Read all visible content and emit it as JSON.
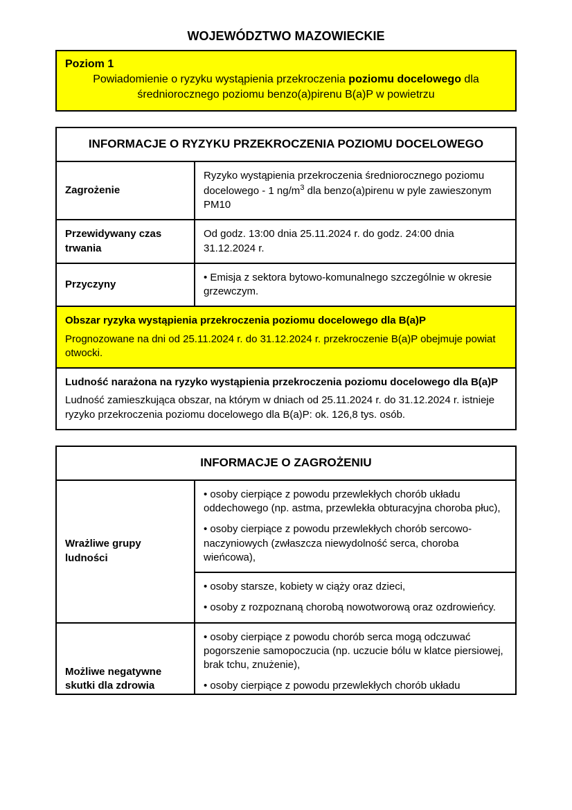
{
  "page_title": "WOJEWÓDZTWO MAZOWIECKIE",
  "banner": {
    "level": "Poziom 1",
    "line1_pre": "Powiadomienie o ryzyku wystąpienia przekroczenia ",
    "line1_bold": "poziomu docelowego",
    "line1_post": " dla średniorocznego poziomu benzo(a)pirenu B(a)P w powietrzu"
  },
  "risk_section": {
    "header": "INFORMACJE O RYZYKU PRZEKROCZENIA POZIOMU DOCELOWEGO",
    "rows": {
      "threat_label": "Zagrożenie",
      "threat_value_pre": "Ryzyko wystąpienia przekroczenia średniorocznego poziomu docelowego - 1 ng/m",
      "threat_value_post": " dla benzo(a)pirenu w pyle zawieszonym PM10",
      "duration_label": "Przewidywany czas trwania",
      "duration_value": "Od godz. 13:00 dnia 25.11.2024 r. do godz. 24:00 dnia 31.12.2024 r.",
      "causes_label": "Przyczyny",
      "causes_value": "• Emisja z sektora bytowo-komunalnego szczególnie w okresie grzewczym."
    },
    "area": {
      "title": "Obszar ryzyka wystąpienia przekroczenia poziomu docelowego dla B(a)P",
      "body": "Prognozowane na dni od 25.11.2024 r. do 31.12.2024 r. przekroczenie B(a)P obejmuje powiat otwocki."
    },
    "population": {
      "title": "Ludność narażona na ryzyko wystąpienia przekroczenia poziomu docelowego dla B(a)P",
      "body": "Ludność zamieszkująca obszar, na którym w dniach od 25.11.2024 r. do 31.12.2024 r. istnieje ryzyko przekroczenia poziomu docelowego dla B(a)P: ok. 126,8 tys. osób."
    }
  },
  "hazard_section": {
    "header": "INFORMACJE O ZAGROŻENIU",
    "sensitive_label": "Wrażliwe grupy ludności",
    "sensitive_cell1_p1": "• osoby cierpiące z powodu przewlekłych chorób układu oddechowego (np. astma, przewlekła obturacyjna choroba płuc),",
    "sensitive_cell1_p2": "• osoby cierpiące z powodu przewlekłych chorób sercowo-naczyniowych (zwłaszcza niewydolność serca, choroba wieńcowa),",
    "sensitive_cell2_p1": "• osoby starsze, kobiety w ciąży oraz dzieci,",
    "sensitive_cell2_p2": "• osoby z rozpoznaną chorobą nowotworową oraz ozdrowieńcy.",
    "effects_label": "Możliwe negatywne skutki dla zdrowia",
    "effects_p1": "• osoby cierpiące z powodu chorób serca mogą odczuwać pogorszenie samopoczucia (np. uczucie bólu w klatce piersiowej, brak tchu, znużenie),",
    "effects_p2": "• osoby cierpiące z powodu przewlekłych chorób układu"
  }
}
